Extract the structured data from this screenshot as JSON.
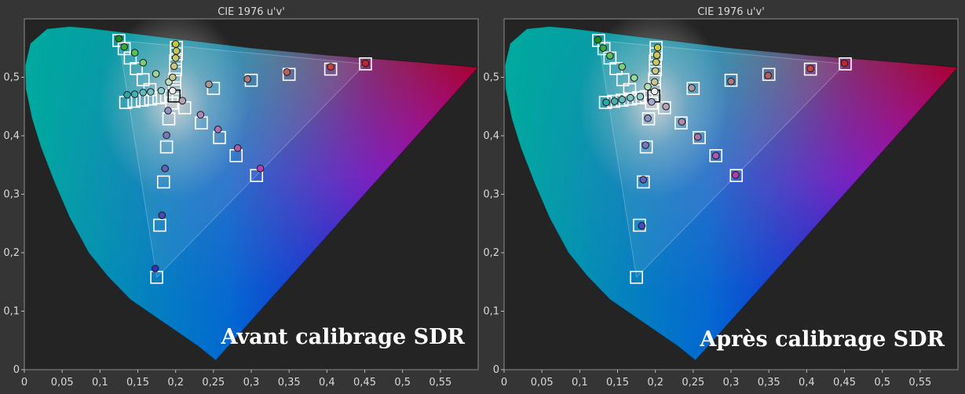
{
  "chart_data": [
    {
      "type": "scatter",
      "title": "CIE 1976 u'v'",
      "caption": "Avant calibrage SDR",
      "x_ticks": [
        "0",
        "0,05",
        "0,1",
        "0,15",
        "0,2",
        "0,25",
        "0,3",
        "0,35",
        "0,4",
        "0,45",
        "0,5",
        "0,55"
      ],
      "y_ticks": [
        "0",
        "0,1",
        "0,2",
        "0,3",
        "0,4",
        "0,5"
      ],
      "xlim": [
        0,
        0.6
      ],
      "ylim": [
        0,
        0.6
      ],
      "grid": false,
      "gamut": {
        "red": [
          0.451,
          0.523
        ],
        "green": [
          0.125,
          0.563
        ],
        "blue": [
          0.175,
          0.158
        ],
        "white": [
          0.198,
          0.468
        ]
      },
      "targets": [
        [
          0.125,
          0.563
        ],
        [
          0.132,
          0.549
        ],
        [
          0.14,
          0.533
        ],
        [
          0.148,
          0.515
        ],
        [
          0.157,
          0.496
        ],
        [
          0.166,
          0.479
        ],
        [
          0.451,
          0.523
        ],
        [
          0.405,
          0.514
        ],
        [
          0.35,
          0.505
        ],
        [
          0.3,
          0.495
        ],
        [
          0.25,
          0.481
        ],
        [
          0.175,
          0.158
        ],
        [
          0.179,
          0.247
        ],
        [
          0.184,
          0.321
        ],
        [
          0.188,
          0.381
        ],
        [
          0.191,
          0.429
        ],
        [
          0.195,
          0.456
        ],
        [
          0.201,
          0.551
        ],
        [
          0.201,
          0.54
        ],
        [
          0.2,
          0.528
        ],
        [
          0.2,
          0.513
        ],
        [
          0.199,
          0.497
        ],
        [
          0.199,
          0.482
        ],
        [
          0.134,
          0.457
        ],
        [
          0.145,
          0.459
        ],
        [
          0.156,
          0.461
        ],
        [
          0.167,
          0.463
        ],
        [
          0.178,
          0.465
        ],
        [
          0.188,
          0.467
        ],
        [
          0.307,
          0.332
        ],
        [
          0.28,
          0.366
        ],
        [
          0.258,
          0.397
        ],
        [
          0.234,
          0.422
        ],
        [
          0.212,
          0.448
        ],
        [
          0.198,
          0.468
        ]
      ],
      "measured": [
        {
          "x": 0.125,
          "y": 0.566,
          "c": "#1d8a1d"
        },
        {
          "x": 0.132,
          "y": 0.552,
          "c": "#3ca83c"
        },
        {
          "x": 0.146,
          "y": 0.542,
          "c": "#5cc05c"
        },
        {
          "x": 0.157,
          "y": 0.525,
          "c": "#7ad07a"
        },
        {
          "x": 0.174,
          "y": 0.506,
          "c": "#98d898"
        },
        {
          "x": 0.191,
          "y": 0.492,
          "c": "#b6e0b6"
        },
        {
          "x": 0.451,
          "y": 0.524,
          "c": "#c0282a"
        },
        {
          "x": 0.405,
          "y": 0.518,
          "c": "#c04446"
        },
        {
          "x": 0.347,
          "y": 0.509,
          "c": "#b85c5e"
        },
        {
          "x": 0.295,
          "y": 0.497,
          "c": "#b07a7c"
        },
        {
          "x": 0.244,
          "y": 0.488,
          "c": "#a89898"
        },
        {
          "x": 0.173,
          "y": 0.173,
          "c": "#3030b8"
        },
        {
          "x": 0.182,
          "y": 0.264,
          "c": "#4848b8"
        },
        {
          "x": 0.186,
          "y": 0.344,
          "c": "#6060b8"
        },
        {
          "x": 0.188,
          "y": 0.401,
          "c": "#7878c0"
        },
        {
          "x": 0.19,
          "y": 0.443,
          "c": "#9090c8"
        },
        {
          "x": 0.2,
          "y": 0.557,
          "c": "#c8c840"
        },
        {
          "x": 0.201,
          "y": 0.545,
          "c": "#c8c855"
        },
        {
          "x": 0.2,
          "y": 0.533,
          "c": "#c8c86a"
        },
        {
          "x": 0.198,
          "y": 0.519,
          "c": "#c8c880"
        },
        {
          "x": 0.196,
          "y": 0.5,
          "c": "#c8c895"
        },
        {
          "x": 0.136,
          "y": 0.47,
          "c": "#2aa8a8"
        },
        {
          "x": 0.146,
          "y": 0.471,
          "c": "#44b2b2"
        },
        {
          "x": 0.157,
          "y": 0.474,
          "c": "#5ebcbc"
        },
        {
          "x": 0.167,
          "y": 0.475,
          "c": "#78c4c4"
        },
        {
          "x": 0.181,
          "y": 0.477,
          "c": "#94cccc"
        },
        {
          "x": 0.312,
          "y": 0.344,
          "c": "#b040b0"
        },
        {
          "x": 0.282,
          "y": 0.379,
          "c": "#b058b0"
        },
        {
          "x": 0.256,
          "y": 0.411,
          "c": "#b070b0"
        },
        {
          "x": 0.233,
          "y": 0.436,
          "c": "#b488b4"
        },
        {
          "x": 0.209,
          "y": 0.46,
          "c": "#b8a0b8"
        },
        {
          "x": 0.196,
          "y": 0.477,
          "c": "#eeeeee"
        }
      ]
    },
    {
      "type": "scatter",
      "title": "CIE 1976 u'v'",
      "caption": "Après calibrage SDR",
      "x_ticks": [
        "0",
        "0,05",
        "0,1",
        "0,15",
        "0,2",
        "0,25",
        "0,3",
        "0,35",
        "0,4",
        "0,45",
        "0,5",
        "0,55"
      ],
      "y_ticks": [
        "0",
        "0,1",
        "0,2",
        "0,3",
        "0,4",
        "0,5"
      ],
      "xlim": [
        0,
        0.6
      ],
      "ylim": [
        0,
        0.6
      ],
      "grid": false,
      "gamut": {
        "red": [
          0.451,
          0.523
        ],
        "green": [
          0.125,
          0.563
        ],
        "blue": [
          0.175,
          0.158
        ],
        "white": [
          0.198,
          0.468
        ]
      },
      "targets": [
        [
          0.125,
          0.563
        ],
        [
          0.132,
          0.549
        ],
        [
          0.14,
          0.533
        ],
        [
          0.148,
          0.515
        ],
        [
          0.157,
          0.496
        ],
        [
          0.166,
          0.479
        ],
        [
          0.451,
          0.523
        ],
        [
          0.405,
          0.514
        ],
        [
          0.35,
          0.505
        ],
        [
          0.3,
          0.495
        ],
        [
          0.25,
          0.481
        ],
        [
          0.175,
          0.158
        ],
        [
          0.179,
          0.247
        ],
        [
          0.184,
          0.321
        ],
        [
          0.188,
          0.381
        ],
        [
          0.191,
          0.429
        ],
        [
          0.195,
          0.456
        ],
        [
          0.201,
          0.551
        ],
        [
          0.201,
          0.54
        ],
        [
          0.2,
          0.528
        ],
        [
          0.2,
          0.513
        ],
        [
          0.199,
          0.497
        ],
        [
          0.199,
          0.482
        ],
        [
          0.134,
          0.457
        ],
        [
          0.145,
          0.459
        ],
        [
          0.156,
          0.461
        ],
        [
          0.167,
          0.463
        ],
        [
          0.178,
          0.465
        ],
        [
          0.188,
          0.467
        ],
        [
          0.307,
          0.332
        ],
        [
          0.28,
          0.366
        ],
        [
          0.258,
          0.397
        ],
        [
          0.234,
          0.422
        ],
        [
          0.212,
          0.448
        ],
        [
          0.198,
          0.468
        ]
      ],
      "measured": [
        {
          "x": 0.124,
          "y": 0.564,
          "c": "#1d8a1d"
        },
        {
          "x": 0.131,
          "y": 0.55,
          "c": "#3ca83c"
        },
        {
          "x": 0.14,
          "y": 0.537,
          "c": "#5cc05c"
        },
        {
          "x": 0.156,
          "y": 0.518,
          "c": "#7ad07a"
        },
        {
          "x": 0.172,
          "y": 0.499,
          "c": "#98d898"
        },
        {
          "x": 0.19,
          "y": 0.484,
          "c": "#b6e0b6"
        },
        {
          "x": 0.45,
          "y": 0.524,
          "c": "#c0282a"
        },
        {
          "x": 0.405,
          "y": 0.515,
          "c": "#c04446"
        },
        {
          "x": 0.349,
          "y": 0.503,
          "c": "#b85c5e"
        },
        {
          "x": 0.3,
          "y": 0.493,
          "c": "#b07a7c"
        },
        {
          "x": 0.248,
          "y": 0.482,
          "c": "#a89898"
        },
        {
          "x": 0.182,
          "y": 0.246,
          "c": "#4848b8"
        },
        {
          "x": 0.184,
          "y": 0.325,
          "c": "#6060b8"
        },
        {
          "x": 0.187,
          "y": 0.384,
          "c": "#7878c0"
        },
        {
          "x": 0.19,
          "y": 0.43,
          "c": "#9090c8"
        },
        {
          "x": 0.195,
          "y": 0.458,
          "c": "#a8a8d0"
        },
        {
          "x": 0.203,
          "y": 0.551,
          "c": "#c8c840"
        },
        {
          "x": 0.202,
          "y": 0.538,
          "c": "#c8c855"
        },
        {
          "x": 0.201,
          "y": 0.526,
          "c": "#c8c86a"
        },
        {
          "x": 0.2,
          "y": 0.511,
          "c": "#c8c880"
        },
        {
          "x": 0.199,
          "y": 0.492,
          "c": "#c8c895"
        },
        {
          "x": 0.135,
          "y": 0.457,
          "c": "#2aa8a8"
        },
        {
          "x": 0.146,
          "y": 0.459,
          "c": "#44b2b2"
        },
        {
          "x": 0.156,
          "y": 0.462,
          "c": "#5ebcbc"
        },
        {
          "x": 0.167,
          "y": 0.465,
          "c": "#78c4c4"
        },
        {
          "x": 0.18,
          "y": 0.467,
          "c": "#94cccc"
        },
        {
          "x": 0.306,
          "y": 0.333,
          "c": "#b040b0"
        },
        {
          "x": 0.28,
          "y": 0.366,
          "c": "#b058b0"
        },
        {
          "x": 0.256,
          "y": 0.398,
          "c": "#b070b0"
        },
        {
          "x": 0.235,
          "y": 0.424,
          "c": "#b488b4"
        },
        {
          "x": 0.214,
          "y": 0.45,
          "c": "#b8a0b8"
        },
        {
          "x": 0.199,
          "y": 0.476,
          "c": "#eeeeee"
        }
      ]
    }
  ]
}
